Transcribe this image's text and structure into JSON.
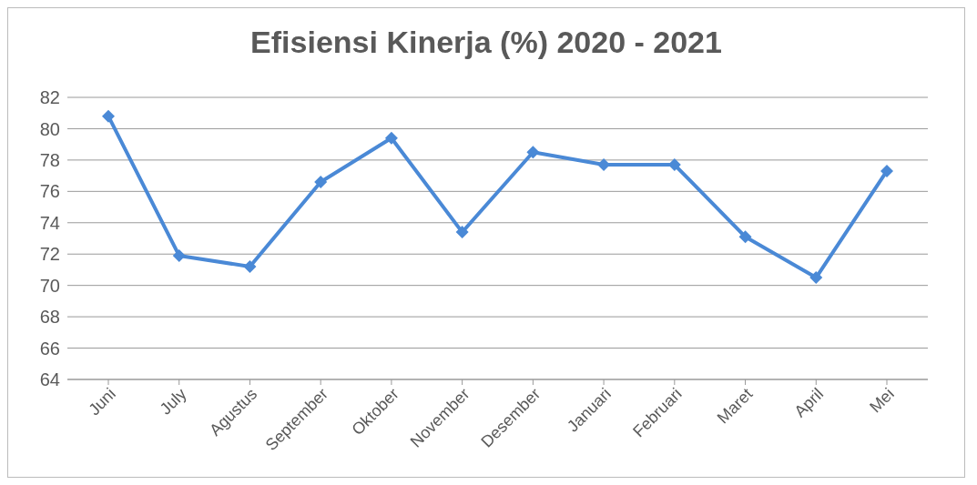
{
  "chart_data": {
    "type": "line",
    "title": "Efisiensi Kinerja (%) 2020 - 2021",
    "categories": [
      "Juni",
      "July",
      "Agustus",
      "September",
      "Oktober",
      "November",
      "Desember",
      "Januari",
      "Februari",
      "Maret",
      "April",
      "Mei"
    ],
    "values": [
      80.8,
      71.9,
      71.2,
      76.6,
      79.4,
      73.4,
      78.5,
      77.7,
      77.7,
      73.1,
      70.5,
      77.3
    ],
    "color": "#4a89d6",
    "ylim": [
      64,
      82
    ],
    "yticks": [
      64,
      66,
      68,
      70,
      72,
      74,
      76,
      78,
      80,
      82
    ],
    "grid": "y",
    "marker": "diamond",
    "line_style": "solid"
  }
}
